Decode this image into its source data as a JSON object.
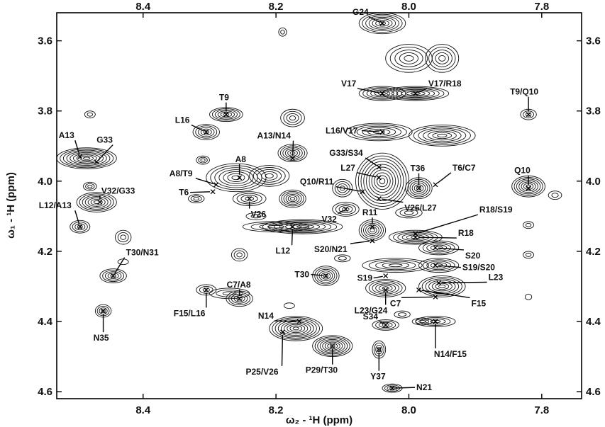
{
  "chart_data": {
    "type": "scatter",
    "xlabel": "ω₂ - ¹H (ppm)",
    "ylabel": "ω₁ - ¹H (ppm)",
    "xlim": [
      8.53,
      7.74
    ],
    "ylim": [
      4.62,
      3.52
    ],
    "x_reversed": true,
    "y_reversed": true,
    "grid": false,
    "xticks": [
      "8.4",
      "8.2",
      "8.0",
      "7.8"
    ],
    "yticks": [
      "3.6",
      "3.8",
      "4.0",
      "4.2",
      "4.4",
      "4.6"
    ],
    "tick_values_x": [
      8.4,
      8.2,
      8.0,
      7.8
    ],
    "tick_values_y": [
      3.6,
      3.8,
      4.0,
      4.2,
      4.4,
      4.6
    ],
    "peaks": [
      {
        "label": "G24",
        "x": 8.04,
        "y": 3.55
      },
      {
        "label": "V17",
        "x": 8.04,
        "y": 3.75
      },
      {
        "label": "V17/R18",
        "x": 7.99,
        "y": 3.75
      },
      {
        "label": "T9/Q10",
        "x": 7.82,
        "y": 3.81
      },
      {
        "label": "T9",
        "x": 8.275,
        "y": 3.81
      },
      {
        "label": "L16",
        "x": 8.305,
        "y": 3.86
      },
      {
        "label": "L16/V17",
        "x": 8.04,
        "y": 3.86
      },
      {
        "label": "A13",
        "x": 8.495,
        "y": 3.93
      },
      {
        "label": "G33",
        "x": 8.47,
        "y": 3.945
      },
      {
        "label": "A13/N14",
        "x": 8.175,
        "y": 3.935
      },
      {
        "label": "G33/S34",
        "x": 8.045,
        "y": 3.96
      },
      {
        "label": "A8",
        "x": 8.255,
        "y": 3.99
      },
      {
        "label": "A8/T9",
        "x": 8.29,
        "y": 4.01
      },
      {
        "label": "L27",
        "x": 8.045,
        "y": 3.99
      },
      {
        "label": "T36",
        "x": 7.985,
        "y": 4.02
      },
      {
        "label": "T6/C7",
        "x": 7.96,
        "y": 4.01
      },
      {
        "label": "Q10",
        "x": 7.82,
        "y": 4.02
      },
      {
        "label": "T6",
        "x": 8.295,
        "y": 4.03
      },
      {
        "label": "Q10/R11",
        "x": 8.07,
        "y": 4.03
      },
      {
        "label": "V32/G33",
        "x": 8.465,
        "y": 4.06
      },
      {
        "label": "V26",
        "x": 8.24,
        "y": 4.05
      },
      {
        "label": "V26/L27",
        "x": 8.045,
        "y": 4.05
      },
      {
        "label": "V32",
        "x": 8.095,
        "y": 4.08
      },
      {
        "label": "R18/S19",
        "x": 7.99,
        "y": 4.15
      },
      {
        "label": "R11",
        "x": 8.055,
        "y": 4.13
      },
      {
        "label": "L12/A13",
        "x": 8.495,
        "y": 4.13
      },
      {
        "label": "L12",
        "x": 8.175,
        "y": 4.13
      },
      {
        "label": "R18",
        "x": 7.99,
        "y": 4.16
      },
      {
        "label": "S20/N21",
        "x": 8.055,
        "y": 4.17
      },
      {
        "label": "S20",
        "x": 7.96,
        "y": 4.19
      },
      {
        "label": "S19/S20",
        "x": 7.96,
        "y": 4.24
      },
      {
        "label": "T30/N31",
        "x": 8.445,
        "y": 4.27
      },
      {
        "label": "T30",
        "x": 8.125,
        "y": 4.27
      },
      {
        "label": "S19",
        "x": 8.035,
        "y": 4.27
      },
      {
        "label": "L23",
        "x": 7.955,
        "y": 4.29
      },
      {
        "label": "L23/G24",
        "x": 8.035,
        "y": 4.31
      },
      {
        "label": "F15/L16",
        "x": 8.305,
        "y": 4.31
      },
      {
        "label": "C7/A8",
        "x": 8.255,
        "y": 4.335
      },
      {
        "label": "C7",
        "x": 7.96,
        "y": 4.33
      },
      {
        "label": "F15",
        "x": 7.985,
        "y": 4.31
      },
      {
        "label": "N35",
        "x": 8.46,
        "y": 4.37
      },
      {
        "label": "N14",
        "x": 8.165,
        "y": 4.4
      },
      {
        "label": "S34",
        "x": 8.035,
        "y": 4.41
      },
      {
        "label": "N14/F15",
        "x": 7.96,
        "y": 4.4
      },
      {
        "label": "P25/V26",
        "x": 8.19,
        "y": 4.43
      },
      {
        "label": "P29/T30",
        "x": 8.115,
        "y": 4.47
      },
      {
        "label": "Y37",
        "x": 8.045,
        "y": 4.48
      },
      {
        "label": "N21",
        "x": 8.025,
        "y": 4.59
      }
    ]
  }
}
